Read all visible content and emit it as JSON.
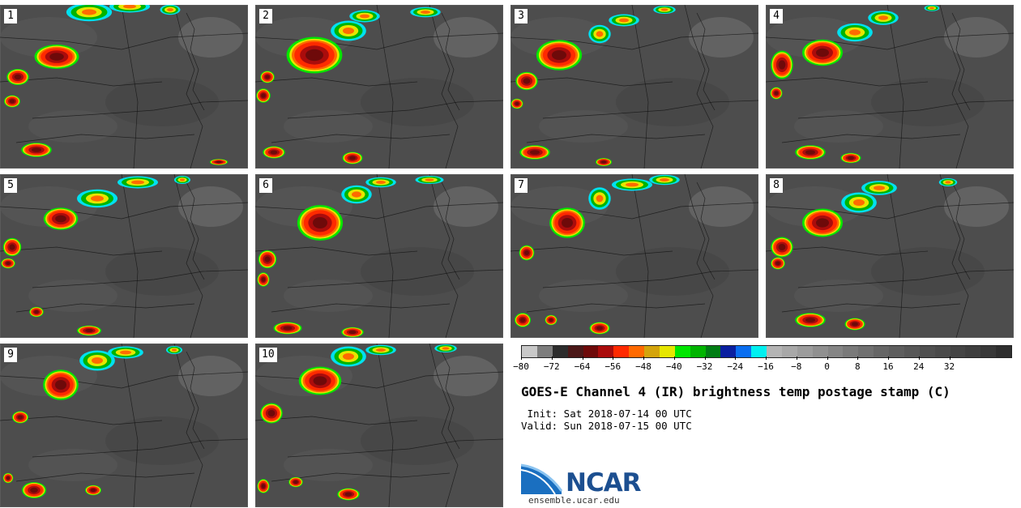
{
  "panels": [
    {
      "label": "1",
      "storms": [
        [
          70,
          70,
          44,
          24
        ],
        [
          22,
          95,
          22,
          16
        ],
        [
          15,
          125,
          16,
          12
        ],
        [
          45,
          185,
          30,
          14
        ],
        [
          270,
          200,
          18,
          6
        ]
      ],
      "cold_cloud_band": [
        [
          110,
          15,
          45,
          18
        ],
        [
          160,
          8,
          40,
          12
        ],
        [
          210,
          12,
          20,
          10
        ]
      ]
    },
    {
      "label": "2",
      "storms": [
        [
          388,
          68,
          55,
          36
        ],
        [
          330,
          95,
          14,
          12
        ],
        [
          325,
          118,
          14,
          14
        ],
        [
          338,
          188,
          22,
          12
        ],
        [
          435,
          195,
          20,
          12
        ]
      ],
      "cold_cloud_band": [
        [
          430,
          38,
          35,
          20
        ],
        [
          450,
          20,
          30,
          12
        ],
        [
          525,
          15,
          30,
          10
        ]
      ]
    },
    {
      "label": "3",
      "storms": [
        [
          690,
          68,
          45,
          30
        ],
        [
          650,
          100,
          22,
          18
        ],
        [
          638,
          128,
          12,
          10
        ],
        [
          660,
          188,
          30,
          14
        ],
        [
          745,
          200,
          16,
          8
        ]
      ],
      "cold_cloud_band": [
        [
          740,
          42,
          22,
          18
        ],
        [
          770,
          25,
          30,
          12
        ],
        [
          820,
          12,
          22,
          8
        ]
      ]
    },
    {
      "label": "4",
      "storms": [
        [
          1015,
          65,
          40,
          26
        ],
        [
          965,
          80,
          22,
          28
        ],
        [
          958,
          115,
          12,
          12
        ],
        [
          1000,
          188,
          30,
          14
        ],
        [
          1050,
          195,
          20,
          10
        ]
      ],
      "cold_cloud_band": [
        [
          1055,
          40,
          35,
          18
        ],
        [
          1090,
          22,
          30,
          14
        ],
        [
          1150,
          10,
          15,
          6
        ]
      ]
    },
    {
      "label": "5",
      "storms": [
        [
          75,
          270,
          34,
          22
        ],
        [
          15,
          305,
          18,
          18
        ],
        [
          10,
          325,
          14,
          10
        ],
        [
          45,
          385,
          14,
          10
        ],
        [
          110,
          408,
          24,
          10
        ]
      ],
      "cold_cloud_band": [
        [
          120,
          245,
          40,
          18
        ],
        [
          170,
          225,
          40,
          12
        ],
        [
          225,
          222,
          16,
          8
        ]
      ]
    },
    {
      "label": "6",
      "storms": [
        [
          395,
          275,
          45,
          35
        ],
        [
          330,
          320,
          18,
          18
        ],
        [
          325,
          345,
          12,
          14
        ],
        [
          355,
          405,
          28,
          12
        ],
        [
          435,
          410,
          22,
          10
        ]
      ],
      "cold_cloud_band": [
        [
          440,
          240,
          30,
          18
        ],
        [
          470,
          225,
          30,
          10
        ],
        [
          530,
          222,
          28,
          8
        ]
      ]
    },
    {
      "label": "7",
      "storms": [
        [
          700,
          275,
          35,
          30
        ],
        [
          650,
          312,
          15,
          15
        ],
        [
          645,
          395,
          16,
          14
        ],
        [
          680,
          395,
          12,
          10
        ],
        [
          740,
          405,
          20,
          12
        ]
      ],
      "cold_cloud_band": [
        [
          740,
          245,
          22,
          22
        ],
        [
          780,
          228,
          40,
          12
        ],
        [
          820,
          222,
          30,
          10
        ]
      ]
    },
    {
      "label": "8",
      "storms": [
        [
          1015,
          275,
          40,
          28
        ],
        [
          965,
          305,
          22,
          20
        ],
        [
          960,
          325,
          14,
          12
        ],
        [
          1000,
          395,
          30,
          14
        ],
        [
          1055,
          400,
          20,
          12
        ]
      ],
      "cold_cloud_band": [
        [
          1060,
          250,
          35,
          20
        ],
        [
          1085,
          232,
          35,
          14
        ],
        [
          1170,
          225,
          18,
          8
        ]
      ]
    },
    {
      "label": "9",
      "storms": [
        [
          75,
          475,
          35,
          30
        ],
        [
          25,
          515,
          16,
          12
        ],
        [
          42,
          605,
          24,
          16
        ],
        [
          10,
          590,
          10,
          10
        ],
        [
          115,
          605,
          16,
          10
        ]
      ],
      "cold_cloud_band": [
        [
          120,
          445,
          35,
          20
        ],
        [
          155,
          435,
          35,
          12
        ],
        [
          215,
          432,
          16,
          8
        ]
      ]
    },
    {
      "label": "10",
      "storms": [
        [
          395,
          470,
          42,
          28
        ],
        [
          335,
          510,
          22,
          20
        ],
        [
          325,
          600,
          12,
          14
        ],
        [
          365,
          595,
          14,
          10
        ],
        [
          430,
          610,
          22,
          12
        ]
      ],
      "cold_cloud_band": [
        [
          430,
          440,
          35,
          20
        ],
        [
          470,
          432,
          30,
          10
        ],
        [
          550,
          430,
          22,
          8
        ]
      ]
    }
  ],
  "colorbar": {
    "colors": [
      "#c8c8c8",
      "#7d7d7d",
      "#2d2d2d",
      "#4b1818",
      "#6e0a0a",
      "#aa0c0c",
      "#ff2a00",
      "#ff6a00",
      "#d4a40c",
      "#e6e600",
      "#00e600",
      "#00b400",
      "#007d14",
      "#0a1fa0",
      "#0a6ef0",
      "#00f0f0",
      "#b4b4b4",
      "#a8a8a8",
      "#9c9c9c",
      "#909090",
      "#858585",
      "#7a7a7a",
      "#707070",
      "#666666",
      "#5e5e5e",
      "#575757",
      "#505050",
      "#4a4a4a",
      "#444444",
      "#3e3e3e",
      "#383838",
      "#2e2e2e"
    ],
    "ticks": [
      "−80",
      "−72",
      "−64",
      "−56",
      "−48",
      "−40",
      "−32",
      "−24",
      "−16",
      "−8",
      "0",
      "8",
      "16",
      "24",
      "32"
    ]
  },
  "title": "GOES-E Channel 4 (IR) brightness temp postage stamp (C)",
  "init_text": " Init: Sat 2018-07-14 00 UTC",
  "valid_text": "Valid: Sun 2018-07-15 00 UTC",
  "logo": {
    "name": "NCAR",
    "url": "ensemble.ucar.edu"
  }
}
